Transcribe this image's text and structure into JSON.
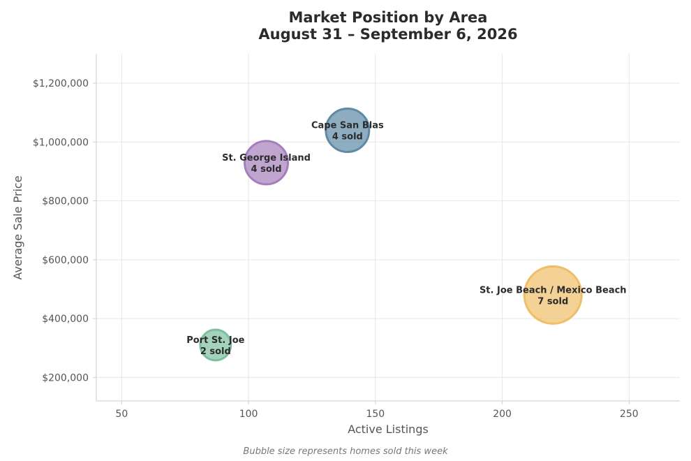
{
  "chart_data": {
    "type": "scatter",
    "title": "Market Position by Area",
    "subtitle": "August 31 – September 6, 2026",
    "xlabel": "Active Listings",
    "ylabel": "Average Sale Price",
    "caption": "Bubble size represents homes sold this week",
    "xlim": [
      40,
      270
    ],
    "ylim": [
      120000,
      1300000
    ],
    "xticks": [
      50,
      100,
      150,
      200,
      250
    ],
    "yticks": [
      200000,
      400000,
      600000,
      800000,
      1000000,
      1200000
    ],
    "grid": true,
    "points": [
      {
        "name": "Port St. Joe",
        "x": 87,
        "y": 310000,
        "sold": 2,
        "sold_label": "2 sold",
        "color": "#7dbf9e"
      },
      {
        "name": "St. George Island",
        "x": 107,
        "y": 930000,
        "sold": 4,
        "sold_label": "4 sold",
        "color": "#a57fbd"
      },
      {
        "name": "Cape San Blas",
        "x": 139,
        "y": 1040000,
        "sold": 4,
        "sold_label": "4 sold",
        "color": "#5e8aa6"
      },
      {
        "name": "St. Joe Beach / Mexico Beach",
        "x": 220,
        "y": 480000,
        "sold": 7,
        "sold_label": "7 sold",
        "color": "#f0bd68"
      }
    ]
  }
}
